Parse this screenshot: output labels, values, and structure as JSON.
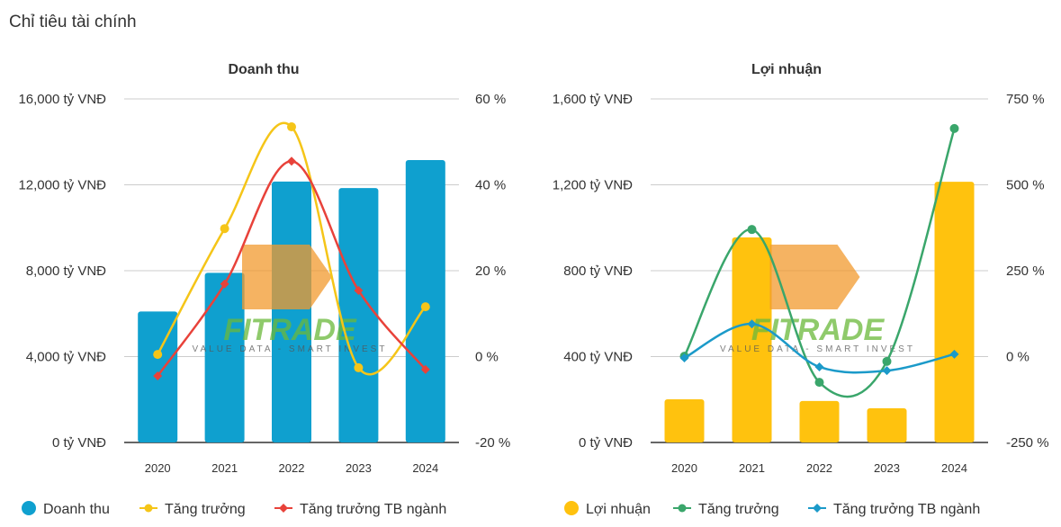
{
  "page_title": "Chỉ tiêu tài chính",
  "watermark": {
    "text": "FITRADE",
    "tagline": "VALUE DATA - SMART INVEST"
  },
  "chart_data": [
    {
      "type": "bar+line",
      "title": "Doanh thu",
      "categories": [
        "2020",
        "2021",
        "2022",
        "2023",
        "2024"
      ],
      "y_left": {
        "ticks": [
          "0 tỷ VNĐ",
          "4,000 tỷ VNĐ",
          "8,000 tỷ VNĐ",
          "12,000 tỷ VNĐ",
          "16,000 tỷ VNĐ"
        ],
        "range": [
          0,
          16000
        ]
      },
      "y_right": {
        "ticks": [
          "-20 %",
          "0 %",
          "20 %",
          "40 %",
          "60 %"
        ],
        "range": [
          -20,
          60
        ]
      },
      "grid": true,
      "legend_position": "bottom",
      "bar_series": {
        "name": "Doanh thu",
        "color": "#0fa0cf",
        "values": [
          6100,
          7900,
          12150,
          11850,
          13150
        ]
      },
      "line_series": [
        {
          "name": "Tăng trưởng",
          "color": "#f5c518",
          "marker": "circle",
          "values": [
            0.5,
            29.8,
            53.5,
            -2.6,
            11.6
          ]
        },
        {
          "name": "Tăng trưởng TB ngành",
          "color": "#e8423a",
          "marker": "diamond",
          "values": [
            -4.5,
            16.9,
            45.5,
            15.4,
            -3.0
          ]
        }
      ]
    },
    {
      "type": "bar+line",
      "title": "Lợi nhuận",
      "categories": [
        "2020",
        "2021",
        "2022",
        "2023",
        "2024"
      ],
      "y_left": {
        "ticks": [
          "0 tỷ VNĐ",
          "400 tỷ VNĐ",
          "800 tỷ VNĐ",
          "1,200 tỷ VNĐ",
          "1,600 tỷ VNĐ"
        ],
        "range": [
          0,
          1600
        ]
      },
      "y_right": {
        "ticks": [
          "-250 %",
          "0 %",
          "250 %",
          "500 %",
          "750 %"
        ],
        "range": [
          -250,
          750
        ]
      },
      "grid": true,
      "legend_position": "bottom",
      "bar_series": {
        "name": "Lợi nhuận",
        "color": "#ffc20e",
        "values": [
          201,
          955,
          193,
          159,
          1214
        ]
      },
      "line_series": [
        {
          "name": "Tăng trưởng",
          "color": "#3aa66b",
          "marker": "circle",
          "values": [
            1,
            370,
            -75,
            -14,
            664
          ]
        },
        {
          "name": "Tăng trưởng TB ngành",
          "color": "#1b9ac9",
          "marker": "diamond",
          "values": [
            -4,
            95,
            -30,
            -41,
            7
          ]
        }
      ]
    }
  ]
}
